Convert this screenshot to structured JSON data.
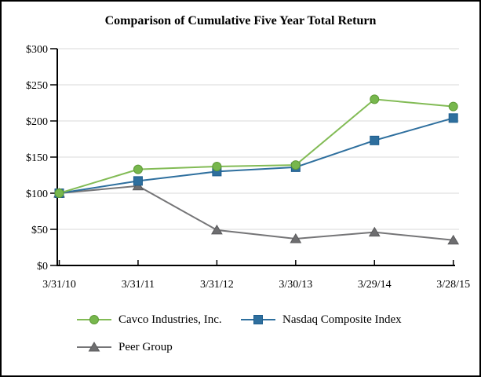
{
  "chart": {
    "title": "Comparison of Cumulative Five Year Total Return"
  },
  "chart_data": {
    "type": "line",
    "title": "Comparison of Cumulative Five Year Total Return",
    "categories": [
      "3/31/10",
      "3/31/11",
      "3/31/12",
      "3/30/13",
      "3/29/14",
      "3/28/15"
    ],
    "series": [
      {
        "name": "Cavco Industries, Inc.",
        "marker": "circle",
        "color": "#77B74D",
        "edge": "#5E9A36",
        "line_color": "#82BB55",
        "values": [
          100,
          133,
          137,
          139,
          230,
          220
        ]
      },
      {
        "name": "Nasdaq Composite Index",
        "marker": "square",
        "color": "#2E6F9E",
        "edge": "#1F5E8E",
        "line_color": "#2E6F9E",
        "values": [
          100,
          117,
          130,
          136,
          173,
          204
        ]
      },
      {
        "name": "Peer Group",
        "marker": "triangle",
        "color": "#6E6E70",
        "edge": "#59595B",
        "line_color": "#757577",
        "values": [
          100,
          110,
          49,
          37,
          46,
          35
        ]
      }
    ],
    "ylim": [
      0,
      300
    ],
    "ytick_step": 50,
    "ytick_labels": [
      "$0",
      "$50",
      "$100",
      "$150",
      "$200",
      "$250",
      "$300"
    ],
    "grid": true,
    "legend_position": "bottom",
    "axis_color": "#000000",
    "grid_color": "#D9D9D9"
  }
}
